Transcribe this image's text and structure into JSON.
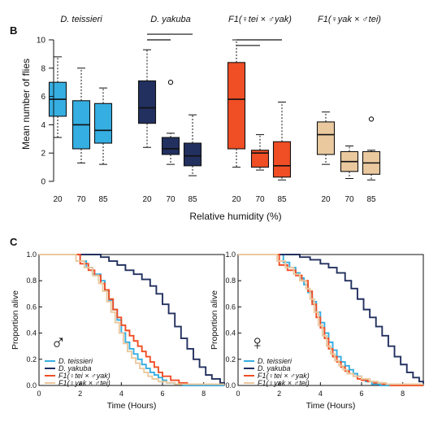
{
  "chart_data": [
    {
      "panel_label": "B",
      "type": "box",
      "ylabel": "Mean number of flies",
      "xlabel": "Relative humidity (%)",
      "ylim": [
        0,
        10
      ],
      "yticks": [
        "0",
        "2",
        "4",
        "6",
        "8",
        "10"
      ],
      "categories": [
        "20",
        "70",
        "85",
        "20",
        "70",
        "85",
        "20",
        "70",
        "85",
        "20",
        "70",
        "85"
      ],
      "groups": [
        {
          "name": "D. teissieri",
          "color": "#35aee2",
          "boxes": [
            {
              "x": "20",
              "whisker_low": 3.1,
              "q1": 4.6,
              "median": 5.8,
              "q3": 7.0,
              "whisker_high": 8.8,
              "outliers": []
            },
            {
              "x": "70",
              "whisker_low": 1.3,
              "q1": 2.3,
              "median": 4.0,
              "q3": 5.7,
              "whisker_high": 8.0,
              "outliers": []
            },
            {
              "x": "85",
              "whisker_low": 1.2,
              "q1": 2.7,
              "median": 3.6,
              "q3": 5.5,
              "whisker_high": 6.6,
              "outliers": []
            }
          ]
        },
        {
          "name": "D. yakuba",
          "color": "#22305f",
          "boxes": [
            {
              "x": "20",
              "whisker_low": 2.4,
              "q1": 4.1,
              "median": 5.2,
              "q3": 7.1,
              "whisker_high": 9.3,
              "outliers": []
            },
            {
              "x": "70",
              "whisker_low": 1.2,
              "q1": 1.9,
              "median": 2.3,
              "q3": 3.1,
              "whisker_high": 3.4,
              "outliers": [
                7.0
              ]
            },
            {
              "x": "85",
              "whisker_low": 0.4,
              "q1": 1.1,
              "median": 1.8,
              "q3": 2.7,
              "whisker_high": 4.7,
              "outliers": []
            }
          ]
        },
        {
          "name": "F1(♀tei × ♂yak)",
          "color": "#f04e25",
          "boxes": [
            {
              "x": "20",
              "whisker_low": 1.0,
              "q1": 2.3,
              "median": 5.8,
              "q3": 8.4,
              "whisker_high": 10.0,
              "outliers": []
            },
            {
              "x": "70",
              "whisker_low": 0.8,
              "q1": 1.0,
              "median": 2.0,
              "q3": 2.2,
              "whisker_high": 3.3,
              "outliers": []
            },
            {
              "x": "85",
              "whisker_low": 0.1,
              "q1": 0.3,
              "median": 1.1,
              "q3": 2.8,
              "whisker_high": 5.6,
              "outliers": []
            }
          ]
        },
        {
          "name": "F1(♀yak × ♂tei)",
          "color": "#eac99f",
          "boxes": [
            {
              "x": "20",
              "whisker_low": 1.2,
              "q1": 1.9,
              "median": 3.3,
              "q3": 4.2,
              "whisker_high": 4.9,
              "outliers": []
            },
            {
              "x": "70",
              "whisker_low": 0.2,
              "q1": 0.7,
              "median": 1.4,
              "q3": 2.1,
              "whisker_high": 2.5,
              "outliers": []
            },
            {
              "x": "85",
              "whisker_low": 0.1,
              "q1": 0.5,
              "median": 1.3,
              "q3": 2.1,
              "whisker_high": 2.2,
              "outliers": [
                4.4
              ]
            }
          ]
        }
      ],
      "significance_bars": [
        {
          "group": "D. yakuba",
          "from": "20",
          "to": "70",
          "y": 10.0
        },
        {
          "group": "D. yakuba",
          "from": "20",
          "to": "85",
          "y": 10.4
        },
        {
          "group": "F1(♀tei × ♂yak)",
          "from": "20",
          "to": "70",
          "y": 9.6
        },
        {
          "group": "F1(♀tei × ♂yak)",
          "from": "20",
          "to": "85",
          "y": 10.0
        }
      ]
    },
    {
      "panel_label": "C",
      "type": "line",
      "step": true,
      "sex_symbol": "♂",
      "xlabel": "Time (Hours)",
      "ylabel": "Proportion alive",
      "xlim": [
        0,
        9
      ],
      "ylim": [
        0,
        1
      ],
      "xticks": [
        "0",
        "2",
        "4",
        "6",
        "8"
      ],
      "yticks": [
        "0.0",
        "0.2",
        "0.4",
        "0.6",
        "0.8",
        "1.0"
      ],
      "series": [
        {
          "name": "D. teissieri",
          "color": "#35aee2",
          "x": [
            0,
            2.0,
            2.3,
            2.6,
            3.0,
            3.2,
            3.4,
            3.6,
            3.8,
            4.0,
            4.2,
            4.4,
            4.6,
            4.8,
            5.0,
            5.2,
            5.4,
            5.6,
            5.8,
            6.0,
            6.2,
            6.6,
            7.0
          ],
          "y": [
            1.0,
            0.95,
            0.9,
            0.85,
            0.8,
            0.72,
            0.65,
            0.58,
            0.5,
            0.4,
            0.33,
            0.28,
            0.24,
            0.2,
            0.16,
            0.13,
            0.1,
            0.08,
            0.06,
            0.04,
            0.02,
            0.01,
            0.0
          ]
        },
        {
          "name": "D. yakuba",
          "color": "#22305f",
          "x": [
            0,
            3.0,
            3.4,
            3.8,
            4.2,
            4.6,
            5.0,
            5.4,
            5.7,
            6.0,
            6.3,
            6.6,
            6.9,
            7.2,
            7.5,
            7.8,
            8.1,
            8.4,
            8.8,
            9.0
          ],
          "y": [
            1.0,
            0.98,
            0.95,
            0.92,
            0.88,
            0.85,
            0.81,
            0.76,
            0.7,
            0.62,
            0.55,
            0.45,
            0.36,
            0.28,
            0.2,
            0.14,
            0.08,
            0.05,
            0.02,
            0.01
          ]
        },
        {
          "name": "F1(♀tei × ♂yak)",
          "color": "#f04e25",
          "x": [
            0,
            2.0,
            2.4,
            2.7,
            3.0,
            3.2,
            3.4,
            3.6,
            3.8,
            4.0,
            4.2,
            4.4,
            4.6,
            4.8,
            5.0,
            5.2,
            5.4,
            5.6,
            5.8,
            6.0,
            6.4,
            6.8,
            7.2
          ],
          "y": [
            1.0,
            0.93,
            0.88,
            0.84,
            0.78,
            0.73,
            0.66,
            0.58,
            0.52,
            0.46,
            0.42,
            0.38,
            0.34,
            0.3,
            0.26,
            0.22,
            0.18,
            0.14,
            0.1,
            0.07,
            0.04,
            0.02,
            0.01
          ]
        },
        {
          "name": "F1(♀yak × ♂tei)",
          "color": "#eac99f",
          "x": [
            0,
            1.8,
            2.2,
            2.6,
            2.9,
            3.1,
            3.3,
            3.5,
            3.7,
            3.9,
            4.1,
            4.3,
            4.5,
            4.7,
            4.9,
            5.1,
            5.3,
            5.5,
            5.8,
            6.2,
            6.6
          ],
          "y": [
            1.0,
            0.95,
            0.9,
            0.84,
            0.78,
            0.72,
            0.64,
            0.56,
            0.48,
            0.4,
            0.32,
            0.26,
            0.21,
            0.17,
            0.13,
            0.1,
            0.07,
            0.05,
            0.03,
            0.02,
            0.01
          ]
        }
      ]
    },
    {
      "type": "line",
      "step": true,
      "sex_symbol": "♀",
      "xlabel": "Time (Hours)",
      "ylabel": "Proportion alive",
      "xlim": [
        0,
        9
      ],
      "ylim": [
        0,
        1
      ],
      "xticks": [
        "0",
        "2",
        "4",
        "6",
        "8"
      ],
      "yticks": [
        "0.0",
        "0.2",
        "0.4",
        "0.6",
        "0.8",
        "1.0"
      ],
      "series": [
        {
          "name": "D. teissieri",
          "color": "#35aee2",
          "x": [
            0,
            2.2,
            2.5,
            2.8,
            3.0,
            3.2,
            3.4,
            3.6,
            3.8,
            4.0,
            4.2,
            4.4,
            4.6,
            4.8,
            5.0,
            5.2,
            5.4,
            5.6,
            5.8,
            6.0,
            6.2,
            6.5,
            6.9
          ],
          "y": [
            1.0,
            0.94,
            0.9,
            0.86,
            0.82,
            0.77,
            0.71,
            0.64,
            0.56,
            0.48,
            0.4,
            0.33,
            0.27,
            0.22,
            0.18,
            0.15,
            0.12,
            0.09,
            0.07,
            0.05,
            0.03,
            0.01,
            0.0
          ]
        },
        {
          "name": "D. yakuba",
          "color": "#22305f",
          "x": [
            0,
            3.0,
            3.5,
            4.0,
            4.4,
            4.8,
            5.2,
            5.5,
            5.8,
            6.1,
            6.4,
            6.7,
            7.0,
            7.3,
            7.6,
            7.9,
            8.2,
            8.5,
            8.8,
            9.0
          ],
          "y": [
            1.0,
            0.98,
            0.96,
            0.93,
            0.9,
            0.86,
            0.8,
            0.74,
            0.66,
            0.58,
            0.52,
            0.45,
            0.38,
            0.3,
            0.22,
            0.16,
            0.1,
            0.06,
            0.03,
            0.01
          ]
        },
        {
          "name": "F1(♀tei × ♂yak)",
          "color": "#f04e25",
          "x": [
            0,
            2.0,
            2.4,
            2.8,
            3.1,
            3.4,
            3.6,
            3.8,
            4.0,
            4.2,
            4.4,
            4.6,
            4.8,
            5.0,
            5.2,
            5.4,
            5.6,
            5.8,
            6.0,
            6.3,
            6.6,
            7.0,
            7.4
          ],
          "y": [
            1.0,
            0.92,
            0.88,
            0.84,
            0.8,
            0.72,
            0.62,
            0.52,
            0.44,
            0.36,
            0.28,
            0.22,
            0.18,
            0.14,
            0.11,
            0.09,
            0.07,
            0.05,
            0.04,
            0.03,
            0.02,
            0.01,
            0.0
          ]
        },
        {
          "name": "F1(♀yak × ♂tei)",
          "color": "#eac99f",
          "x": [
            0,
            1.9,
            2.3,
            2.7,
            3.0,
            3.3,
            3.5,
            3.7,
            3.9,
            4.1,
            4.3,
            4.5,
            4.7,
            4.9,
            5.1,
            5.3,
            5.6,
            6.0,
            6.4,
            6.8,
            7.2
          ],
          "y": [
            1.0,
            0.95,
            0.9,
            0.85,
            0.8,
            0.74,
            0.66,
            0.56,
            0.46,
            0.38,
            0.3,
            0.24,
            0.19,
            0.15,
            0.12,
            0.09,
            0.07,
            0.05,
            0.03,
            0.02,
            0.01
          ]
        }
      ]
    }
  ]
}
